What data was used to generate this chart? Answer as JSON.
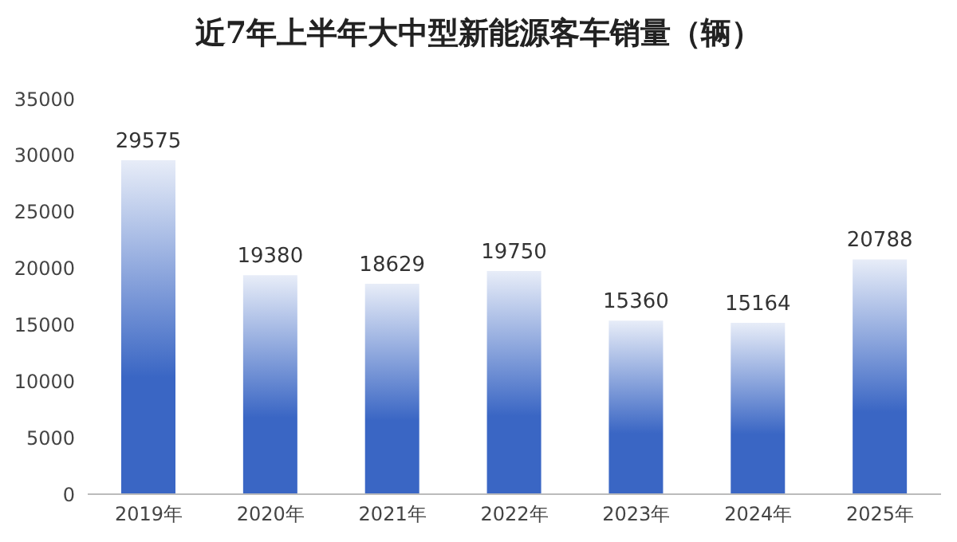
{
  "chart_data": {
    "type": "bar",
    "title": "近7年上半年大中型新能源客车销量（辆）",
    "categories": [
      "2019年",
      "2020年",
      "2021年",
      "2022年",
      "2023年",
      "2024年",
      "2025年"
    ],
    "values": [
      29575,
      19380,
      18629,
      19750,
      15360,
      15164,
      20788
    ],
    "color": "#3a66c4",
    "ylim": [
      0,
      35000
    ],
    "yticks": [
      0,
      5000,
      10000,
      15000,
      20000,
      25000,
      30000,
      35000
    ],
    "grid": false,
    "data_labels": true
  }
}
